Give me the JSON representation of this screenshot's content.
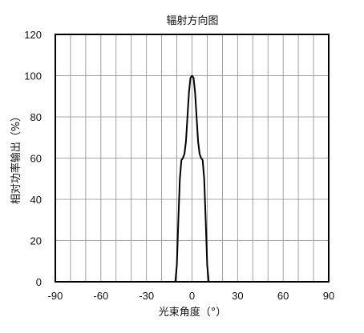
{
  "chart_data": {
    "type": "line",
    "title": "辐射方向图",
    "xlabel": "光束角度（°）",
    "ylabel": "相对功率输出（%）",
    "xlim": [
      -90,
      90
    ],
    "ylim": [
      0,
      120
    ],
    "xticks": [
      -90,
      -60,
      -30,
      0,
      30,
      60,
      90
    ],
    "yticks": [
      0,
      20,
      40,
      60,
      80,
      100,
      120
    ],
    "grid": true,
    "legend": "none",
    "series": [
      {
        "color": "#000000",
        "x": [
          -90,
          -11,
          -10,
          -9,
          -8,
          -7,
          -6,
          -5,
          -4,
          -3,
          -2,
          -1,
          0,
          1,
          2,
          3,
          4,
          5,
          6,
          7,
          8,
          9,
          10,
          11,
          90
        ],
        "y": [
          0,
          0,
          8,
          30,
          50,
          59,
          60,
          62,
          68,
          80,
          92,
          99,
          100,
          99,
          92,
          80,
          68,
          62,
          60,
          59,
          50,
          30,
          8,
          0,
          0
        ]
      }
    ]
  }
}
